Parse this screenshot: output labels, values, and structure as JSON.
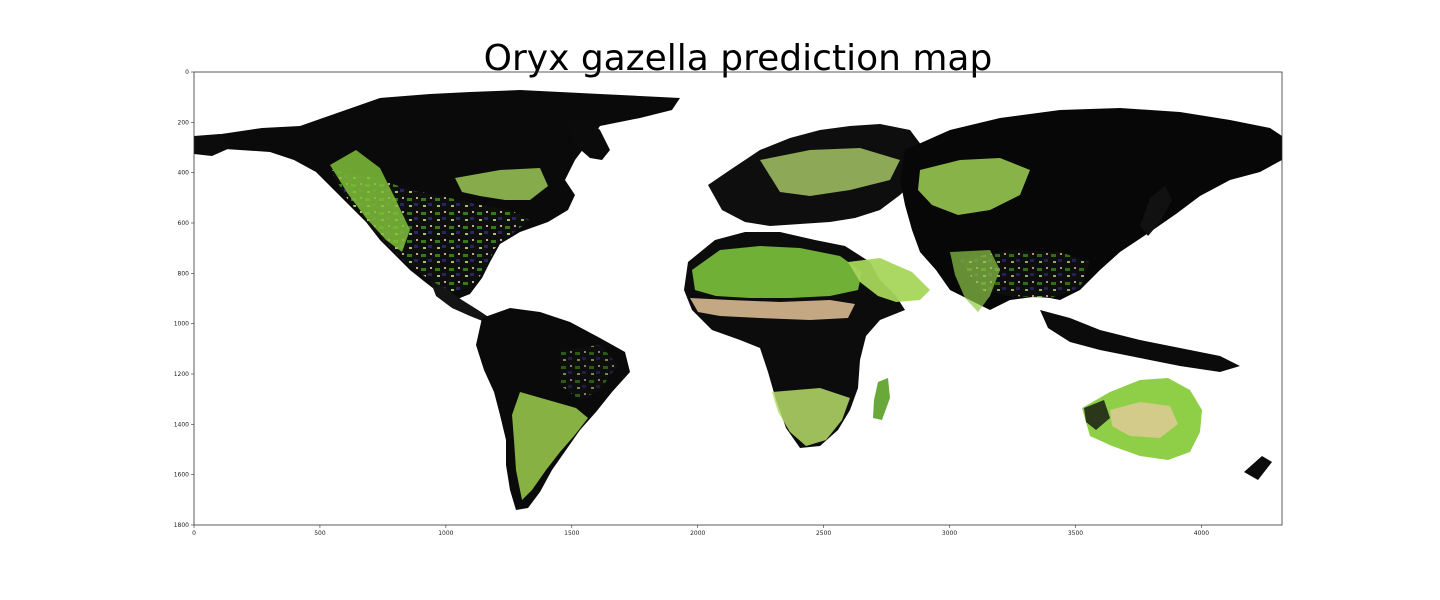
{
  "chart_data": {
    "type": "heatmap",
    "title": "Oryx gazella prediction map",
    "xlabel": "",
    "ylabel": "",
    "xlim": [
      0,
      4320
    ],
    "ylim": [
      1800,
      0
    ],
    "x_ticks": [
      0,
      500,
      1000,
      1500,
      2000,
      2500,
      3000,
      3500,
      4000
    ],
    "y_ticks": [
      0,
      200,
      400,
      600,
      800,
      1000,
      1200,
      1400,
      1600,
      1800
    ],
    "grid": false,
    "colors": {
      "high": "#000000",
      "mid_high": "#2a2a6e",
      "mid": "#e9c9a0",
      "mid_low": "#c4e27a",
      "low": "#3d8f20",
      "no_data": "#ffffff"
    }
  }
}
